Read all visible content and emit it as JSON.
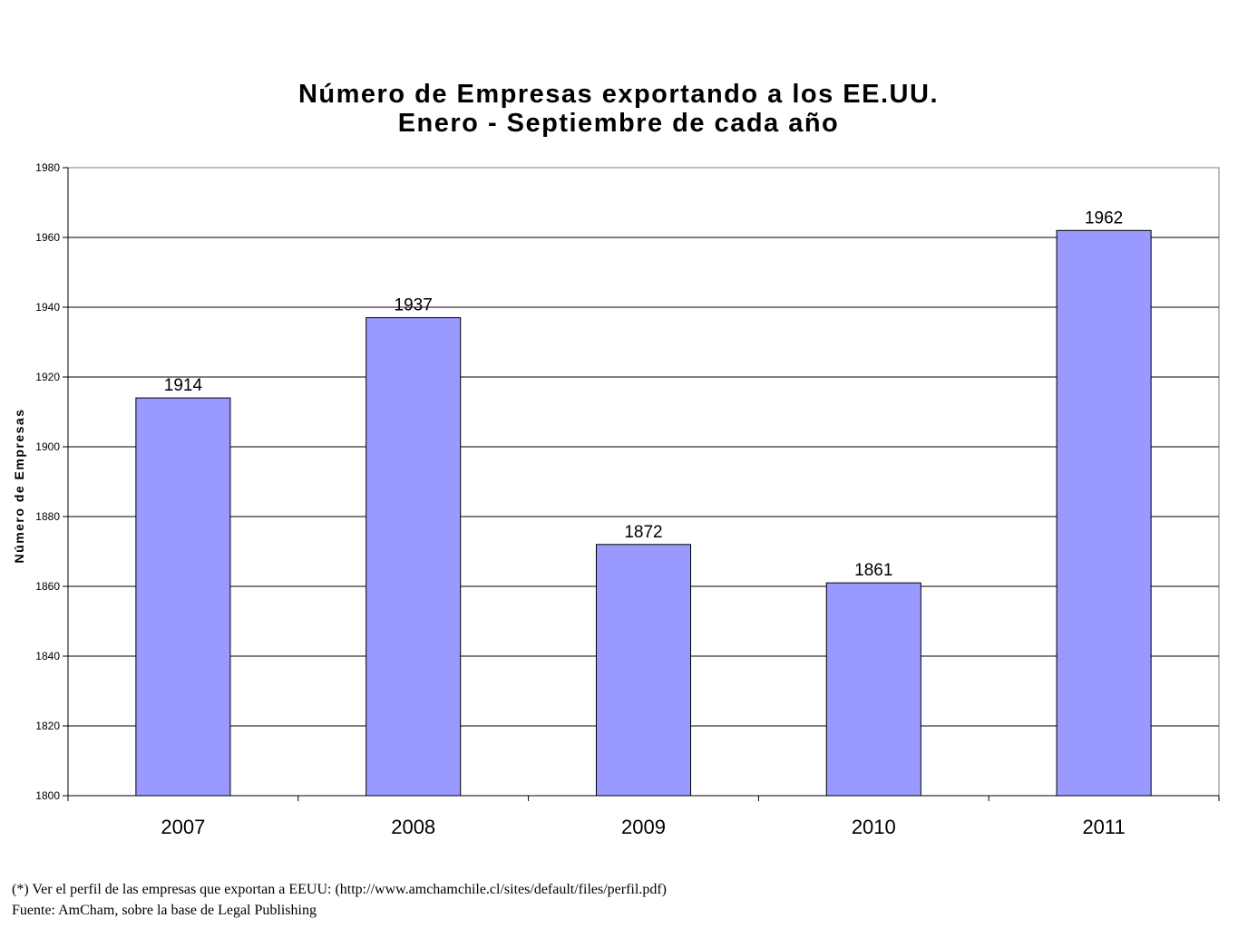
{
  "chart_data": {
    "type": "bar",
    "title": "Número de Empresas exportando a los EE.UU.",
    "subtitle": "Enero - Septiembre de cada año",
    "xlabel": "",
    "ylabel": "Número de Empresas",
    "categories": [
      "2007",
      "2008",
      "2009",
      "2010",
      "2011"
    ],
    "values": [
      1914,
      1937,
      1872,
      1861,
      1962
    ],
    "data_labels": [
      "1914",
      "1937",
      "1872",
      "1861",
      "1962"
    ],
    "ylim": [
      1800,
      1980
    ],
    "yticks": [
      1800,
      1820,
      1840,
      1860,
      1880,
      1900,
      1920,
      1940,
      1960,
      1980
    ],
    "grid": true,
    "legend": "none",
    "bar_color": "#9999ff"
  },
  "notes": {
    "line1": "(*) Ver el perfil de las empresas que exportan a EEUU: (http://www.amchamchile.cl/sites/default/files/perfil.pdf)",
    "line2": "Fuente: AmCham, sobre la base de Legal Publishing"
  }
}
